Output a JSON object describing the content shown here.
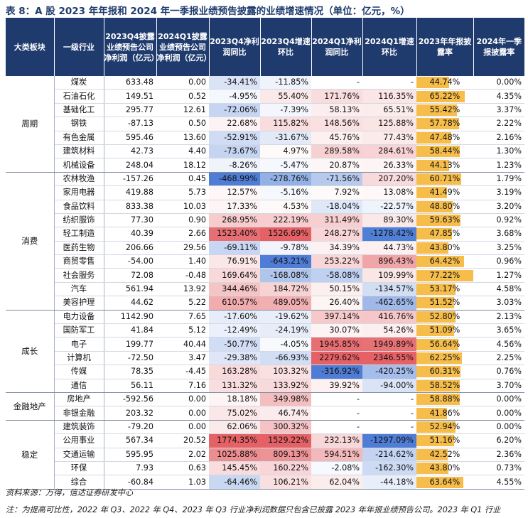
{
  "title": "表 8：A 股 2023 年年报和 2024 年一季报业绩预告披露的业绩增速情况（单位：亿元，%）",
  "headers": [
    "大类板块",
    "一级行业",
    "2023Q4披露业绩预告公司净利润（亿元）",
    "2024Q1披露业绩预告公司净利润（亿元）",
    "2023Q4净利润同比",
    "2023Q4增速环比",
    "2024Q1净利润同比",
    "2024Q1增速环比",
    "2023年年报披露率",
    "2024年一季报披露率"
  ],
  "colors": {
    "header_bg": "#1f3b6e",
    "red_max": "#e0454a",
    "blue_max": "#3b6fd1",
    "bar": "#f6bd4b"
  },
  "groups": [
    {
      "name": "周期",
      "rows": [
        {
          "ind": "煤炭",
          "v1": "633.48",
          "v2": "0.00",
          "c1": "-34.41%",
          "c2": "-11.85%",
          "c3": "-",
          "c4": "-",
          "r1": "44.74%",
          "r2": "0.00%"
        },
        {
          "ind": "石油石化",
          "v1": "149.51",
          "v2": "0.52",
          "c1": "-4.95%",
          "c2": "55.40%",
          "c3": "171.76%",
          "c4": "116.35%",
          "r1": "65.22%",
          "r2": "4.35%"
        },
        {
          "ind": "基础化工",
          "v1": "295.77",
          "v2": "12.61",
          "c1": "-72.06%",
          "c2": "-7.39%",
          "c3": "58.13%",
          "c4": "65.51%",
          "r1": "55.42%",
          "r2": "3.37%"
        },
        {
          "ind": "钢铁",
          "v1": "-87.13",
          "v2": "0.50",
          "c1": "22.68%",
          "c2": "115.82%",
          "c3": "148.56%",
          "c4": "125.88%",
          "r1": "57.78%",
          "r2": "2.22%"
        },
        {
          "ind": "有色金属",
          "v1": "595.46",
          "v2": "13.60",
          "c1": "-52.91%",
          "c2": "-31.67%",
          "c3": "45.76%",
          "c4": "77.43%",
          "r1": "47.48%",
          "r2": "2.16%"
        },
        {
          "ind": "建筑材料",
          "v1": "42.73",
          "v2": "4.40",
          "c1": "-73.67%",
          "c2": "4.97%",
          "c3": "289.58%",
          "c4": "284.61%",
          "r1": "58.44%",
          "r2": "1.30%"
        },
        {
          "ind": "机械设备",
          "v1": "248.04",
          "v2": "18.12",
          "c1": "-8.26%",
          "c2": "-5.47%",
          "c3": "20.87%",
          "c4": "26.33%",
          "r1": "44.13%",
          "r2": "1.23%"
        }
      ]
    },
    {
      "name": "消费",
      "rows": [
        {
          "ind": "农林牧渔",
          "v1": "-157.26",
          "v2": "0.45",
          "c1": "-468.99%",
          "c2": "-278.76%",
          "c3": "-71.56%",
          "c4": "207.20%",
          "r1": "60.71%",
          "r2": "1.79%"
        },
        {
          "ind": "家用电器",
          "v1": "419.88",
          "v2": "5.73",
          "c1": "12.57%",
          "c2": "-5.16%",
          "c3": "7.92%",
          "c4": "13.08%",
          "r1": "41.49%",
          "r2": "3.19%"
        },
        {
          "ind": "食品饮料",
          "v1": "833.38",
          "v2": "10.03",
          "c1": "17.33%",
          "c2": "4.53%",
          "c3": "-18.04%",
          "c4": "-22.57%",
          "r1": "48.80%",
          "r2": "3.20%"
        },
        {
          "ind": "纺织服饰",
          "v1": "77.30",
          "v2": "0.90",
          "c1": "268.95%",
          "c2": "222.19%",
          "c3": "311.49%",
          "c4": "89.30%",
          "r1": "59.63%",
          "r2": "0.92%"
        },
        {
          "ind": "轻工制造",
          "v1": "40.39",
          "v2": "2.66",
          "c1": "1523.40%",
          "c2": "1526.69%",
          "c3": "248.27%",
          "c4": "-1278.42%",
          "r1": "47.85%",
          "r2": "3.68%"
        },
        {
          "ind": "医药生物",
          "v1": "206.66",
          "v2": "29.56",
          "c1": "-69.11%",
          "c2": "-9.78%",
          "c3": "34.39%",
          "c4": "44.73%",
          "r1": "43.80%",
          "r2": "3.25%"
        },
        {
          "ind": "商贸零售",
          "v1": "-54.00",
          "v2": "1.40",
          "c1": "76.91%",
          "c2": "-643.21%",
          "c3": "253.22%",
          "c4": "896.43%",
          "r1": "64.42%",
          "r2": "0.96%"
        },
        {
          "ind": "社会服务",
          "v1": "72.08",
          "v2": "-0.48",
          "c1": "169.64%",
          "c2": "-168.08%",
          "c3": "-58.08%",
          "c4": "109.99%",
          "r1": "77.22%",
          "r2": "1.27%"
        },
        {
          "ind": "汽车",
          "v1": "561.94",
          "v2": "13.92",
          "c1": "344.46%",
          "c2": "184.72%",
          "c3": "50.15%",
          "c4": "-134.57%",
          "r1": "53.17%",
          "r2": "4.58%"
        },
        {
          "ind": "美容护理",
          "v1": "44.62",
          "v2": "5.22",
          "c1": "610.57%",
          "c2": "489.05%",
          "c3": "26.40%",
          "c4": "-462.65%",
          "r1": "51.52%",
          "r2": "3.03%"
        }
      ]
    },
    {
      "name": "成长",
      "rows": [
        {
          "ind": "电力设备",
          "v1": "1142.90",
          "v2": "7.65",
          "c1": "-17.60%",
          "c2": "-19.62%",
          "c3": "397.14%",
          "c4": "416.76%",
          "r1": "52.80%",
          "r2": "2.13%"
        },
        {
          "ind": "国防军工",
          "v1": "41.84",
          "v2": "5.12",
          "c1": "-12.49%",
          "c2": "-24.19%",
          "c3": "30.07%",
          "c4": "54.26%",
          "r1": "51.09%",
          "r2": "3.65%"
        },
        {
          "ind": "电子",
          "v1": "199.77",
          "v2": "40.44",
          "c1": "-50.77%",
          "c2": "-4.05%",
          "c3": "1945.85%",
          "c4": "1949.89%",
          "r1": "56.64%",
          "r2": "4.56%"
        },
        {
          "ind": "计算机",
          "v1": "-72.50",
          "v2": "3.47",
          "c1": "-29.38%",
          "c2": "-66.93%",
          "c3": "2279.62%",
          "c4": "2346.55%",
          "r1": "62.25%",
          "r2": "2.25%"
        },
        {
          "ind": "传媒",
          "v1": "78.35",
          "v2": "-4.45",
          "c1": "163.28%",
          "c2": "103.32%",
          "c3": "-316.92%",
          "c4": "-420.25%",
          "r1": "60.31%",
          "r2": "0.76%"
        },
        {
          "ind": "通信",
          "v1": "56.11",
          "v2": "7.16",
          "c1": "131.32%",
          "c2": "133.92%",
          "c3": "39.92%",
          "c4": "-94.00%",
          "r1": "58.52%",
          "r2": "3.70%"
        }
      ]
    },
    {
      "name": "金融地产",
      "rows": [
        {
          "ind": "房地产",
          "v1": "-592.56",
          "v2": "0.00",
          "c1": "18.18%",
          "c2": "349.98%",
          "c3": "-",
          "c4": "-",
          "r1": "58.88%",
          "r2": "0.00%"
        },
        {
          "ind": "非银金融",
          "v1": "203.32",
          "v2": "0.00",
          "c1": "75.02%",
          "c2": "46.74%",
          "c3": "-",
          "c4": "-",
          "r1": "41.86%",
          "r2": "0.00%"
        }
      ]
    },
    {
      "name": "稳定",
      "rows": [
        {
          "ind": "建筑装饰",
          "v1": "-79.20",
          "v2": "0.00",
          "c1": "62.06%",
          "c2": "300.32%",
          "c3": "-",
          "c4": "-",
          "r1": "52.94%",
          "r2": "0.00%"
        },
        {
          "ind": "公用事业",
          "v1": "567.34",
          "v2": "20.52",
          "c1": "1774.35%",
          "c2": "1529.22%",
          "c3": "232.13%",
          "c4": "-1297.09%",
          "r1": "51.16%",
          "r2": "6.20%"
        },
        {
          "ind": "交通运输",
          "v1": "595.95",
          "v2": "2.02",
          "c1": "1025.88%",
          "c2": "809.13%",
          "c3": "594.51%",
          "c4": "-214.62%",
          "r1": "42.52%",
          "r2": "2.36%"
        },
        {
          "ind": "环保",
          "v1": "7.93",
          "v2": "0.63",
          "c1": "145.45%",
          "c2": "160.22%",
          "c3": "-2.08%",
          "c4": "-162.30%",
          "r1": "43.80%",
          "r2": "0.73%"
        },
        {
          "ind": "综合",
          "v1": "-60.84",
          "v2": "1.03",
          "c1": "-64.46%",
          "c2": "106.21%",
          "c3": "62.04%",
          "c4": "-44.18%",
          "r1": "63.64%",
          "r2": "4.55%"
        }
      ]
    }
  ],
  "source": "资料来源：万得，信达证券研发中心",
  "note": "注：为提高可比性，2022 年 Q3、2022 年 Q4、2023 年 Q3 行业净利润数据只包含已披露 2023 年年报业绩预告公司。2023 年 Q1 行业"
}
